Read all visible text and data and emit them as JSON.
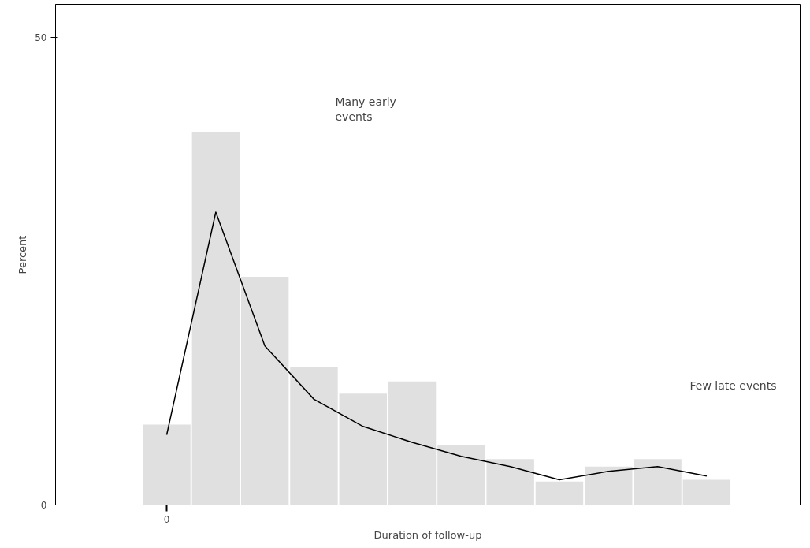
{
  "chart_data": {
    "type": "bar",
    "xlabel": "Duration of follow-up",
    "ylabel": "Percent",
    "categories": [
      null,
      null,
      null,
      null,
      null,
      null,
      null,
      null,
      null,
      null,
      null,
      null
    ],
    "values": [
      8.6,
      39.9,
      24.4,
      14.7,
      11.9,
      13.2,
      6.4,
      4.9,
      2.5,
      4.1,
      4.9,
      2.7
    ],
    "color": "#e0e0e0",
    "series": [
      {
        "type": "line",
        "color": "#000000",
        "values": [
          7.5,
          31.3,
          17.0,
          11.3,
          8.4,
          6.7,
          5.2,
          4.1,
          2.7,
          3.6,
          4.1,
          3.1
        ]
      }
    ],
    "ylim": [
      0,
      53.5
    ],
    "yticks": [
      {
        "value": 0,
        "label": "0"
      },
      {
        "value": 50,
        "label": "50"
      }
    ],
    "line_style": "solid",
    "annotations": [
      "0",
      "Many early\nevents",
      "Few late events"
    ]
  }
}
